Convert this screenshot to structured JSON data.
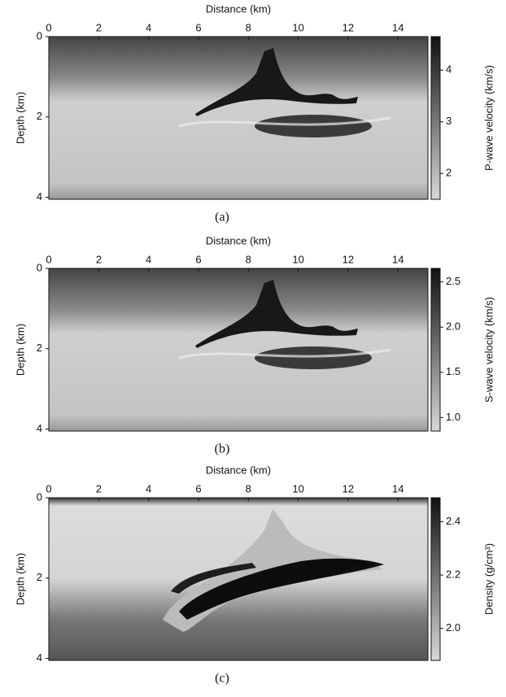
{
  "chart_data": [
    {
      "type": "heatmap",
      "xlabel": "Distance (km)",
      "ylabel": "Depth (km)",
      "colorbar_label": "P-wave velocity (km/s)",
      "caption": "(a)",
      "xlim": [
        0,
        15.2
      ],
      "xticks": [
        0,
        2,
        4,
        6,
        8,
        10,
        12,
        14
      ],
      "ylim": [
        0,
        4.05
      ],
      "yticks": [
        0,
        2,
        4
      ],
      "clim": [
        1.5,
        4.65
      ],
      "cticks": [
        2,
        3,
        4
      ],
      "colormap": [
        "#d8d8d8",
        "#111111"
      ]
    },
    {
      "type": "heatmap",
      "xlabel": "Distance (km)",
      "ylabel": "Depth (km)",
      "colorbar_label": "S-wave velocity (km/s)",
      "caption": "(b)",
      "xlim": [
        0,
        15.2
      ],
      "xticks": [
        0,
        2,
        4,
        6,
        8,
        10,
        12,
        14
      ],
      "ylim": [
        0,
        4.05
      ],
      "yticks": [
        0,
        2,
        4
      ],
      "clim": [
        0.85,
        2.65
      ],
      "cticks": [
        {
          "value": 1,
          "label": "1.0"
        },
        1.5,
        {
          "value": 2,
          "label": "2.0"
        },
        2.5
      ],
      "colormap": [
        "#d8d8d8",
        "#111111"
      ]
    },
    {
      "type": "heatmap",
      "xlabel": "Distance (km)",
      "ylabel": "Depth (km)",
      "colorbar_label": "Density (g/cm³)",
      "caption": "(c)",
      "xlim": [
        0,
        15.2
      ],
      "xticks": [
        0,
        2,
        4,
        6,
        8,
        10,
        12,
        14
      ],
      "ylim": [
        0,
        4.05
      ],
      "yticks": [
        0,
        2,
        4
      ],
      "clim": [
        1.88,
        2.49
      ],
      "cticks": [
        {
          "value": 2,
          "label": "2.0"
        },
        2.2,
        2.4
      ],
      "colormap": [
        "#d8d8d8",
        "#111111"
      ]
    }
  ]
}
